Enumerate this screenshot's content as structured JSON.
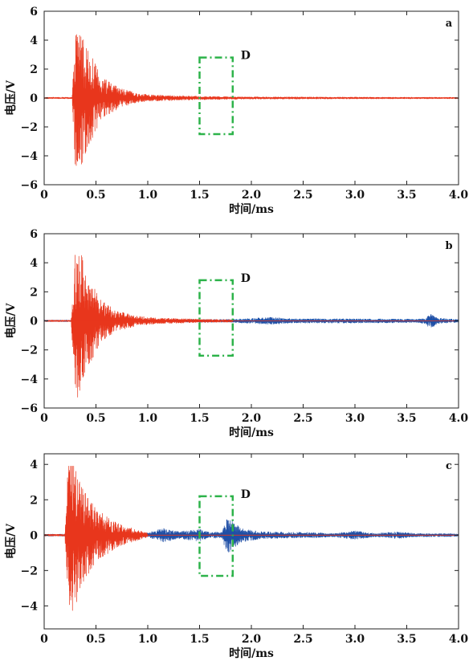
{
  "figure": {
    "colors": {
      "signal_primary": "#e8361c",
      "signal_secondary": "#1f4fa6",
      "region_box": "#2db34a",
      "axes": "#222222"
    }
  },
  "chart_data": [
    {
      "type": "line",
      "panel_label": "a",
      "xlabel": "时间/ms",
      "ylabel": "电压/V",
      "xlim": [
        0,
        4.0
      ],
      "ylim": [
        -6,
        6
      ],
      "x_ticks": [
        "0",
        "0.5",
        "1.0",
        "1.5",
        "2.0",
        "2.5",
        "3.0",
        "3.5",
        "4.0"
      ],
      "y_ticks": [
        "6",
        "4",
        "2",
        "0",
        "−2",
        "−4",
        "−6"
      ],
      "region": {
        "label": "D",
        "x": [
          1.5,
          1.82
        ],
        "y": [
          -2.5,
          2.8
        ],
        "style": "dash-dot"
      },
      "series": [
        {
          "color": "#e8361c",
          "envelope": [
            [
              0.0,
              0.05
            ],
            [
              0.27,
              0.05
            ],
            [
              0.3,
              4.8
            ],
            [
              0.33,
              5.5
            ],
            [
              0.42,
              3.5
            ],
            [
              0.55,
              1.5
            ],
            [
              0.7,
              0.8
            ],
            [
              0.9,
              0.3
            ],
            [
              1.1,
              0.2
            ],
            [
              1.5,
              0.12
            ],
            [
              2.0,
              0.08
            ],
            [
              3.0,
              0.06
            ],
            [
              4.0,
              0.05
            ]
          ],
          "peaks": {
            "max": 4.8,
            "min": -5.5
          }
        }
      ]
    },
    {
      "type": "line",
      "panel_label": "b",
      "xlabel": "时间/ms",
      "ylabel": "电压/V",
      "xlim": [
        0,
        4.0
      ],
      "ylim": [
        -6,
        6
      ],
      "x_ticks": [
        "0",
        "0.5",
        "1.0",
        "1.5",
        "2.0",
        "2.5",
        "3.0",
        "3.5",
        "4.0"
      ],
      "y_ticks": [
        "6",
        "4",
        "2",
        "0",
        "−2",
        "−4",
        "−6"
      ],
      "region": {
        "label": "D",
        "x": [
          1.5,
          1.82
        ],
        "y": [
          -2.4,
          2.8
        ],
        "style": "dash-dot"
      },
      "series": [
        {
          "color": "#1f4fa6",
          "envelope": [
            [
              0.0,
              0.05
            ],
            [
              1.8,
              0.1
            ],
            [
              2.2,
              0.25
            ],
            [
              2.4,
              0.15
            ],
            [
              3.0,
              0.15
            ],
            [
              3.6,
              0.12
            ],
            [
              3.68,
              0.2
            ],
            [
              3.72,
              0.55
            ],
            [
              3.8,
              0.2
            ],
            [
              4.0,
              0.1
            ]
          ],
          "peaks": {
            "max": 0.55,
            "min": -0.55
          }
        },
        {
          "color": "#e8361c",
          "envelope": [
            [
              0.0,
              0.05
            ],
            [
              0.26,
              0.05
            ],
            [
              0.29,
              4.6
            ],
            [
              0.32,
              5.4
            ],
            [
              0.42,
              3.3
            ],
            [
              0.55,
              1.4
            ],
            [
              0.7,
              0.7
            ],
            [
              0.9,
              0.35
            ],
            [
              1.1,
              0.2
            ],
            [
              1.5,
              0.12
            ],
            [
              1.82,
              0.08
            ]
          ],
          "peaks": {
            "max": 4.6,
            "min": -5.4
          }
        }
      ]
    },
    {
      "type": "line",
      "panel_label": "c",
      "xlabel": "时间/ms",
      "ylabel": "电压/V",
      "xlim": [
        0,
        4.0
      ],
      "ylim": [
        -5.3,
        4.6
      ],
      "x_ticks": [
        "0",
        "0.5",
        "1.0",
        "1.5",
        "2.0",
        "2.5",
        "3.0",
        "3.5",
        "4.0"
      ],
      "y_ticks": [
        "4",
        "2",
        "0",
        "−2",
        "−4"
      ],
      "region": {
        "label": "D",
        "x": [
          1.5,
          1.82
        ],
        "y": [
          -2.3,
          2.2
        ],
        "style": "dash-dot"
      },
      "series": [
        {
          "color": "#1f4fa6",
          "envelope": [
            [
              0.0,
              0.05
            ],
            [
              1.0,
              0.12
            ],
            [
              1.15,
              0.4
            ],
            [
              1.3,
              0.2
            ],
            [
              1.5,
              0.35
            ],
            [
              1.6,
              0.15
            ],
            [
              1.72,
              0.2
            ],
            [
              1.76,
              1.1
            ],
            [
              1.8,
              0.9
            ],
            [
              1.9,
              0.4
            ],
            [
              2.1,
              0.2
            ],
            [
              2.6,
              0.15
            ],
            [
              2.8,
              0.1
            ],
            [
              3.0,
              0.25
            ],
            [
              3.2,
              0.1
            ],
            [
              3.4,
              0.2
            ],
            [
              3.6,
              0.1
            ],
            [
              4.0,
              0.08
            ]
          ],
          "peaks": {
            "max": 1.1,
            "min": -1.2
          }
        },
        {
          "color": "#e8361c",
          "envelope": [
            [
              0.0,
              0.05
            ],
            [
              0.2,
              0.05
            ],
            [
              0.23,
              3.9
            ],
            [
              0.26,
              5.0
            ],
            [
              0.35,
              3.0
            ],
            [
              0.5,
              1.5
            ],
            [
              0.7,
              0.7
            ],
            [
              0.85,
              0.4
            ],
            [
              1.0,
              0.12
            ]
          ],
          "peaks": {
            "max": 3.9,
            "min": -5.0
          }
        }
      ]
    }
  ]
}
